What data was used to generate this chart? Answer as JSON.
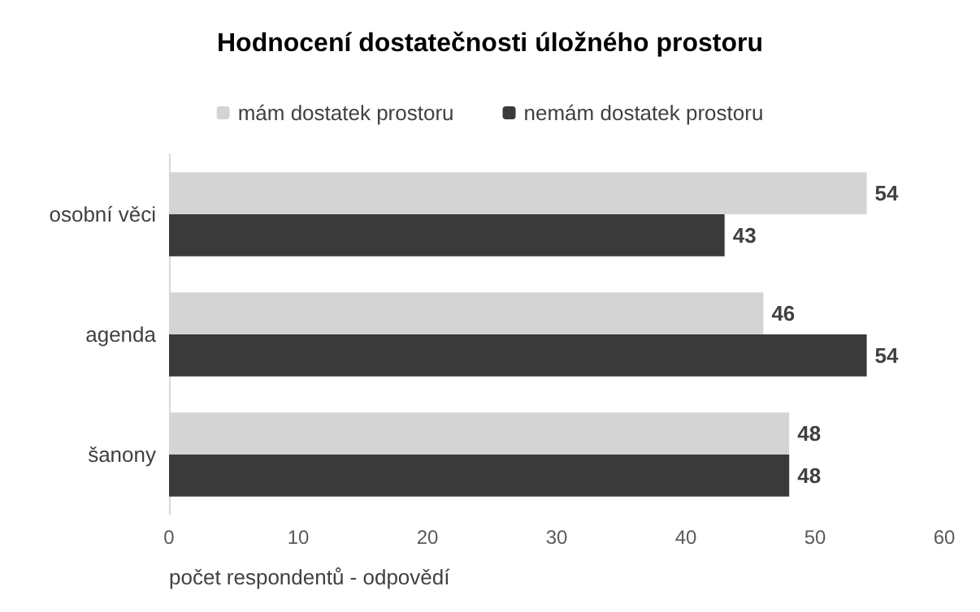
{
  "chart_data": {
    "type": "bar",
    "orientation": "horizontal",
    "title": "Hodnocení dostatečnosti úložného prostoru",
    "xlabel": "počet respondentů - odpovědí",
    "categories": [
      "osobní věci",
      "agenda",
      "šanony"
    ],
    "series": [
      {
        "name": "mám dostatek prostoru",
        "color": "#d4d4d4",
        "values": [
          54,
          46,
          48
        ]
      },
      {
        "name": "nemám dostatek prostoru",
        "color": "#3a3a3a",
        "values": [
          43,
          54,
          48
        ]
      }
    ],
    "xlim": [
      0,
      60
    ],
    "xticks": [
      0,
      10,
      20,
      30,
      40,
      50,
      60
    ],
    "grid": false,
    "legend": "top",
    "data_labels": true
  }
}
